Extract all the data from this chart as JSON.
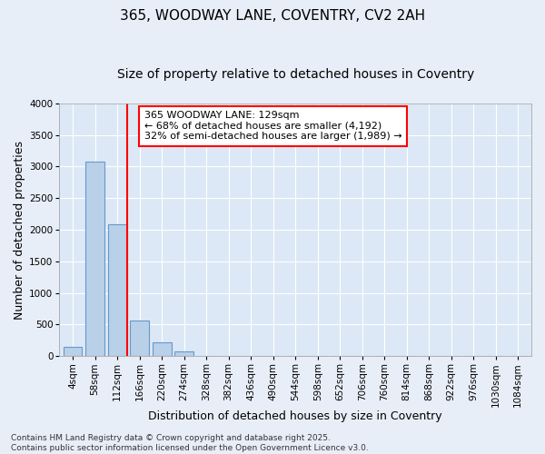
{
  "title_line1": "365, WOODWAY LANE, COVENTRY, CV2 2AH",
  "title_line2": "Size of property relative to detached houses in Coventry",
  "xlabel": "Distribution of detached houses by size in Coventry",
  "ylabel": "Number of detached properties",
  "categories": [
    "4sqm",
    "58sqm",
    "112sqm",
    "166sqm",
    "220sqm",
    "274sqm",
    "328sqm",
    "382sqm",
    "436sqm",
    "490sqm",
    "544sqm",
    "598sqm",
    "652sqm",
    "706sqm",
    "760sqm",
    "814sqm",
    "868sqm",
    "922sqm",
    "976sqm",
    "1030sqm",
    "1084sqm"
  ],
  "values": [
    150,
    3080,
    2080,
    570,
    220,
    75,
    0,
    0,
    0,
    0,
    0,
    0,
    0,
    0,
    0,
    0,
    0,
    0,
    0,
    0,
    0
  ],
  "bar_color": "#b8d0e8",
  "bar_edge_color": "#6699cc",
  "vline_color": "red",
  "vline_linewidth": 1.5,
  "ylim": [
    0,
    4000
  ],
  "yticks": [
    0,
    500,
    1000,
    1500,
    2000,
    2500,
    3000,
    3500,
    4000
  ],
  "annotation_text": "365 WOODWAY LANE: 129sqm\n← 68% of detached houses are smaller (4,192)\n32% of semi-detached houses are larger (1,989) →",
  "annotation_box_facecolor": "white",
  "annotation_box_edgecolor": "red",
  "footer_line1": "Contains HM Land Registry data © Crown copyright and database right 2025.",
  "footer_line2": "Contains public sector information licensed under the Open Government Licence v3.0.",
  "bg_color": "#e8eef8",
  "plot_bg_color": "#dce8f5",
  "grid_color": "white",
  "title_fontsize": 11,
  "subtitle_fontsize": 10,
  "label_fontsize": 9,
  "tick_fontsize": 7.5,
  "annotation_fontsize": 8,
  "footer_fontsize": 6.5
}
